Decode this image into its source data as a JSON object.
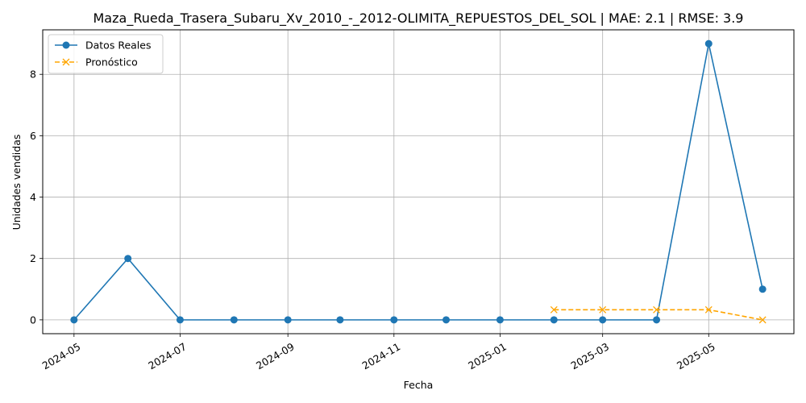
{
  "chart_data": {
    "type": "line",
    "title": "Maza_Rueda_Trasera_Subaru_Xv_2010_-_2012-OLIMITA_REPUESTOS_DEL_SOL | MAE: 2.1 | RMSE: 3.9",
    "xlabel": "Fecha",
    "ylabel": "Unidades vendidas",
    "grid": true,
    "legend_position": "top-left",
    "x_ticks": [
      "2024-05",
      "2024-07",
      "2024-09",
      "2024-11",
      "2025-01",
      "2025-03",
      "2025-05"
    ],
    "y_ticks": [
      0,
      2,
      4,
      6,
      8
    ],
    "ylim": [
      -0.45,
      9.45
    ],
    "xlim": [
      "2024-04-13",
      "2025-06-19"
    ],
    "series": [
      {
        "name": "Datos Reales",
        "color": "#1f77b4",
        "marker": "circle",
        "line_style": "solid",
        "x": [
          "2024-05-01",
          "2024-06-01",
          "2024-07-01",
          "2024-08-01",
          "2024-09-01",
          "2024-10-01",
          "2024-11-01",
          "2024-12-01",
          "2025-01-01",
          "2025-02-01",
          "2025-03-01",
          "2025-04-01",
          "2025-05-01",
          "2025-06-01"
        ],
        "y": [
          0,
          2,
          0,
          0,
          0,
          0,
          0,
          0,
          0,
          0,
          0,
          0,
          9,
          1
        ]
      },
      {
        "name": "Pronóstico",
        "color": "#ffa500",
        "marker": "x",
        "line_style": "dashed",
        "x": [
          "2025-02-01",
          "2025-03-01",
          "2025-04-01",
          "2025-05-01",
          "2025-06-01"
        ],
        "y": [
          0.33,
          0.33,
          0.33,
          0.33,
          0
        ]
      }
    ]
  }
}
